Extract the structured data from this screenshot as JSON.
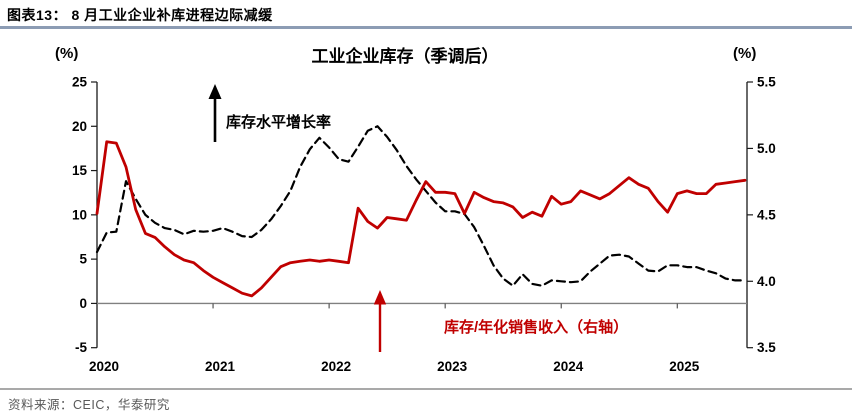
{
  "figure": {
    "caption": "图表13：  8 月工业企业补库进程边际减缓",
    "source": "资料来源：CEIC，华泰研究"
  },
  "colors": {
    "accent_red": "#C00000",
    "black": "#000000",
    "caption_rule": "#8C9CB4",
    "source_rule": "#A9A9A9",
    "source_text": "#595959",
    "zero_line": "#808080",
    "axis": "#1a1a1a"
  },
  "chart_data": {
    "type": "line",
    "title": "工业企业库存（季调后）",
    "left_axis": {
      "unit": "(%)",
      "min": -5,
      "max": 25,
      "ticks": [
        25,
        20,
        15,
        10,
        5,
        0,
        -5
      ]
    },
    "right_axis": {
      "unit": "(%)",
      "min": 3.5,
      "max": 5.5,
      "ticks": [
        "5.5",
        "5.0",
        "4.5",
        "4.0",
        "3.5"
      ]
    },
    "x_axis": {
      "labels": [
        "2020",
        "2021",
        "2022",
        "2023",
        "2024",
        "2025"
      ],
      "start": "2020-01",
      "end": "2025-08",
      "months_per_label": 12
    },
    "grid": false,
    "legend_position": "inline-annotations",
    "series": [
      {
        "name": "库存水平增长率",
        "axis": "left",
        "color": "#000000",
        "style": "dashed",
        "values": [
          5.8,
          8.0,
          8.1,
          13.8,
          11.8,
          10.0,
          9.1,
          8.5,
          8.3,
          7.8,
          8.2,
          8.1,
          8.2,
          8.5,
          8.1,
          7.6,
          7.5,
          8.3,
          9.5,
          11.0,
          12.7,
          15.4,
          17.4,
          18.7,
          17.6,
          16.3,
          16.0,
          17.7,
          19.5,
          20.0,
          18.8,
          17.3,
          15.5,
          14.0,
          12.7,
          11.4,
          10.4,
          10.4,
          10.1,
          8.6,
          6.5,
          4.3,
          2.8,
          2.0,
          3.3,
          2.2,
          2.0,
          2.6,
          2.5,
          2.4,
          2.5,
          3.6,
          4.5,
          5.4,
          5.5,
          5.3,
          4.5,
          3.7,
          3.6,
          4.3,
          4.3,
          4.1,
          4.1,
          3.7,
          3.4,
          2.8,
          2.6,
          2.6
        ]
      },
      {
        "name": "库存/年化销售收入（右轴）",
        "axis": "right",
        "color": "#C00000",
        "style": "solid",
        "values": [
          4.51,
          5.05,
          5.04,
          4.86,
          4.54,
          4.36,
          4.33,
          4.26,
          4.2,
          4.16,
          4.14,
          4.08,
          4.03,
          3.99,
          3.95,
          3.91,
          3.89,
          3.95,
          4.03,
          4.11,
          4.14,
          4.15,
          4.16,
          4.15,
          4.16,
          4.15,
          4.14,
          4.55,
          4.45,
          4.4,
          4.48,
          4.47,
          4.46,
          4.61,
          4.75,
          4.67,
          4.67,
          4.66,
          4.51,
          4.67,
          4.63,
          4.6,
          4.59,
          4.56,
          4.48,
          4.52,
          4.49,
          4.64,
          4.58,
          4.6,
          4.68,
          4.65,
          4.62,
          4.66,
          4.72,
          4.78,
          4.73,
          4.7,
          4.6,
          4.52,
          4.66,
          4.68,
          4.66,
          4.66,
          4.73,
          4.74,
          4.75,
          4.76
        ]
      }
    ],
    "annotations": [
      {
        "text": "库存水平增长率",
        "color": "#000000",
        "arrow": "up"
      },
      {
        "text": "库存/年化销售收入（右轴）",
        "color": "#C00000",
        "arrow": "up"
      }
    ]
  }
}
